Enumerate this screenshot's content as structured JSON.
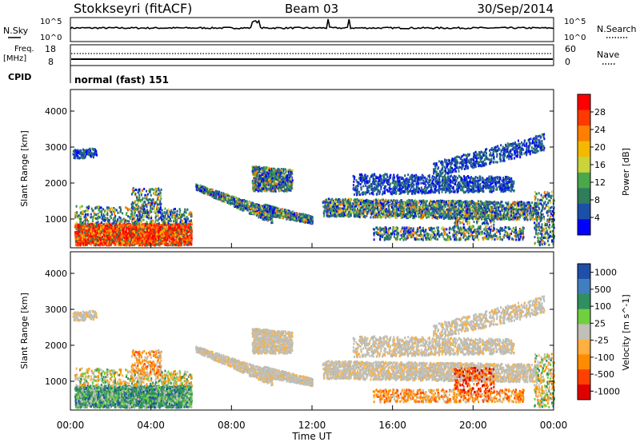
{
  "header": {
    "station": "Stokkseyri (fitACF)",
    "beam": "Beam 03",
    "date": "30/Sep/2014"
  },
  "top_panels": {
    "nsky_label": "N.Sky",
    "nsky_ticks": [
      "10^5",
      "10^0"
    ],
    "nsearch_label": "N.Search",
    "nsearch_ticks": [
      "10^5",
      "10^0"
    ],
    "freq_label": "Freq.",
    "freq_unit": "[MHz]",
    "freq_ticks": [
      "18",
      "8"
    ],
    "nave_label": "Nave",
    "nave_ticks": [
      "60",
      "0"
    ],
    "cpid_label": "CPID",
    "cpid_text": "normal (fast) 151"
  },
  "chart_data": [
    {
      "type": "heatmap",
      "name": "power",
      "ylabel": "Slant Range [km]",
      "xlabel": "",
      "xlim_hours": [
        0,
        24
      ],
      "ylim_km": [
        200,
        4600
      ],
      "yticks": [
        "1000",
        "2000",
        "3000",
        "4000"
      ],
      "colorbar": {
        "label": "Power [dB]",
        "ticks": [
          "4",
          "8",
          "12",
          "16",
          "20",
          "24",
          "28"
        ],
        "colors": [
          "#0000ff",
          "#1c4fa8",
          "#2f7d5c",
          "#4aa84a",
          "#c8d43a",
          "#f5b800",
          "#ff7f00",
          "#ff3a00",
          "#ff0000"
        ]
      }
    },
    {
      "type": "heatmap",
      "name": "velocity",
      "ylabel": "Slant Range [km]",
      "xlabel": "Time UT",
      "xlim_hours": [
        0,
        24
      ],
      "ylim_km": [
        200,
        4600
      ],
      "yticks": [
        "1000",
        "2000",
        "3000",
        "4000"
      ],
      "xticks": [
        "00:00",
        "04:00",
        "08:00",
        "12:00",
        "16:00",
        "20:00",
        "00:00"
      ],
      "colorbar": {
        "label": "Velocity [m s^-1]",
        "ticks": [
          "1000",
          "500",
          "100",
          "25",
          "-25",
          "-100",
          "-500",
          "-1000"
        ],
        "colors": [
          "#1f4fa8",
          "#3f7fbf",
          "#2f8f5f",
          "#6fcf3f",
          "#c0c0b8",
          "#ffb040",
          "#ff8c00",
          "#ff4000",
          "#e00000"
        ]
      }
    }
  ]
}
